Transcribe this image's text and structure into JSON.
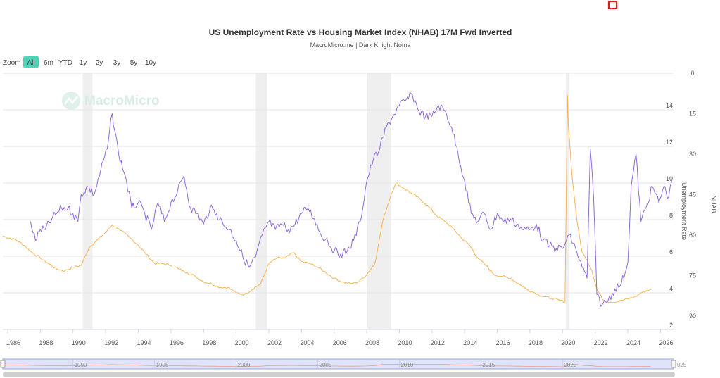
{
  "chart_data": {
    "type": "line",
    "title": "US Unemployment Rate vs Housing Market Index (NHAB) 17M Fwd Inverted",
    "subtitle": "MacroMicro.me | Dark Knight Noma",
    "watermark": "MacroMicro",
    "zoom": {
      "label": "Zoom",
      "buttons": [
        "All",
        "6m",
        "YTD",
        "1y",
        "2y",
        "3y",
        "5y",
        "10y"
      ],
      "active": "All"
    },
    "xlim": [
      1985.7,
      2026.8
    ],
    "x_ticks": [
      "1986",
      "1988",
      "1990",
      "1992",
      "1994",
      "1996",
      "1998",
      "2000",
      "2002",
      "2004",
      "2006",
      "2008",
      "2010",
      "2012",
      "2014",
      "2016",
      "2018",
      "2020",
      "2022",
      "2024",
      "2026"
    ],
    "left_axis": {
      "ylim": [
        2,
        16
      ],
      "ticks": [
        "14",
        "12",
        "10",
        "8",
        "6",
        "4",
        "2"
      ]
    },
    "right_axis": {
      "label": "NHAB",
      "ylim": [
        0,
        95
      ],
      "inverted": true,
      "ticks": [
        "0",
        "15",
        "30",
        "45",
        "60",
        "75",
        "90"
      ]
    },
    "right_axis_label_inner": "Unemployment Rate",
    "recessions": [
      [
        1990.6,
        1991.2
      ],
      [
        2001.2,
        2001.9
      ],
      [
        2008.0,
        2009.5
      ],
      [
        2020.2,
        2020.4
      ]
    ],
    "series": [
      {
        "name": "Unemployment Rate",
        "axis": "left",
        "color": "#f7b355",
        "x": [
          1985.7,
          1986.5,
          1987.0,
          1987.5,
          1988.0,
          1988.5,
          1989.0,
          1989.5,
          1990.0,
          1990.5,
          1991.0,
          1991.5,
          1992.0,
          1992.4,
          1992.8,
          1993.5,
          1994.0,
          1994.5,
          1995.0,
          1995.5,
          1996.0,
          1996.5,
          1997.0,
          1997.5,
          1998.0,
          1998.5,
          1999.0,
          1999.5,
          2000.0,
          2000.5,
          2001.0,
          2001.5,
          2002.0,
          2002.5,
          2003.0,
          2003.5,
          2004.0,
          2004.5,
          2005.0,
          2005.5,
          2006.0,
          2006.5,
          2007.0,
          2007.5,
          2008.0,
          2008.5,
          2009.0,
          2009.5,
          2009.8,
          2010.3,
          2010.8,
          2011.3,
          2011.8,
          2012.3,
          2012.8,
          2013.3,
          2013.8,
          2014.3,
          2014.8,
          2015.3,
          2015.8,
          2016.3,
          2016.8,
          2017.3,
          2017.8,
          2018.3,
          2018.8,
          2019.3,
          2019.8,
          2020.15,
          2020.3,
          2020.35,
          2020.6,
          2020.9,
          2021.2,
          2021.5,
          2021.8,
          2022.1,
          2022.5,
          2022.9,
          2023.3,
          2023.7,
          2024.1,
          2024.5,
          2024.8,
          2025.1,
          2025.4
        ],
        "y": [
          7.1,
          6.9,
          6.6,
          6.2,
          5.9,
          5.6,
          5.3,
          5.2,
          5.4,
          5.5,
          6.5,
          6.9,
          7.3,
          7.7,
          7.5,
          7.0,
          6.6,
          6.1,
          5.6,
          5.6,
          5.5,
          5.3,
          5.1,
          4.9,
          4.6,
          4.5,
          4.3,
          4.3,
          4.0,
          3.9,
          4.2,
          4.5,
          5.6,
          5.9,
          5.9,
          6.2,
          5.7,
          5.6,
          5.4,
          5.1,
          4.8,
          4.6,
          4.5,
          4.6,
          5.0,
          5.6,
          8.0,
          9.4,
          10.0,
          9.7,
          9.4,
          9.1,
          8.7,
          8.2,
          7.9,
          7.5,
          7.0,
          6.6,
          5.9,
          5.5,
          5.0,
          4.9,
          4.8,
          4.5,
          4.2,
          4.0,
          3.8,
          3.7,
          3.6,
          3.5,
          14.8,
          13.2,
          10.2,
          7.8,
          6.2,
          5.8,
          5.2,
          4.2,
          3.6,
          3.5,
          3.5,
          3.6,
          3.7,
          3.8,
          4.0,
          4.1,
          4.2
        ]
      },
      {
        "name": "Housing Market Index (NHAB) 17M Fwd Inverted",
        "axis": "right",
        "color": "#8e6ad8",
        "x": [
          1987.4,
          1987.7,
          1988.0,
          1988.3,
          1988.7,
          1989.0,
          1989.3,
          1989.7,
          1990.0,
          1990.3,
          1990.5,
          1990.9,
          1991.3,
          1991.7,
          1992.1,
          1992.4,
          1992.8,
          1993.2,
          1993.6,
          1994.0,
          1994.4,
          1994.8,
          1995.2,
          1995.6,
          1996.0,
          1996.4,
          1996.8,
          1997.2,
          1997.6,
          1998.0,
          1998.4,
          1998.8,
          1999.2,
          1999.6,
          2000.0,
          2000.4,
          2000.8,
          2001.2,
          2001.6,
          2002.0,
          2002.4,
          2002.8,
          2003.2,
          2003.6,
          2004.0,
          2004.4,
          2004.8,
          2005.2,
          2005.6,
          2006.0,
          2006.4,
          2006.8,
          2007.2,
          2007.6,
          2008.0,
          2008.4,
          2008.8,
          2009.2,
          2009.6,
          2010.0,
          2010.4,
          2010.8,
          2011.2,
          2011.6,
          2012.0,
          2012.4,
          2012.8,
          2013.2,
          2013.6,
          2014.0,
          2014.4,
          2014.8,
          2015.2,
          2015.6,
          2016.0,
          2016.4,
          2016.8,
          2017.2,
          2017.6,
          2018.0,
          2018.4,
          2018.8,
          2019.2,
          2019.6,
          2020.0,
          2020.4,
          2020.8,
          2021.2,
          2021.5,
          2021.7,
          2021.9,
          2022.1,
          2022.4,
          2022.8,
          2023.2,
          2023.6,
          2024.0,
          2024.2,
          2024.5,
          2024.8,
          2025.1,
          2025.5,
          2025.9,
          2026.2,
          2026.5,
          2026.7
        ],
        "y": [
          55,
          62,
          58,
          58,
          54,
          52,
          50,
          50,
          52,
          55,
          45,
          42,
          45,
          36,
          28,
          15,
          30,
          38,
          50,
          48,
          52,
          58,
          48,
          55,
          48,
          44,
          38,
          50,
          52,
          56,
          50,
          52,
          56,
          58,
          62,
          68,
          72,
          68,
          60,
          55,
          58,
          56,
          58,
          56,
          52,
          50,
          54,
          60,
          62,
          66,
          67,
          66,
          62,
          55,
          40,
          32,
          28,
          20,
          16,
          12,
          10,
          8,
          14,
          16,
          16,
          12,
          14,
          20,
          30,
          40,
          52,
          55,
          52,
          58,
          52,
          55,
          54,
          56,
          58,
          58,
          56,
          62,
          64,
          65,
          65,
          60,
          65,
          72,
          76,
          28,
          46,
          82,
          86,
          84,
          80,
          78,
          70,
          42,
          30,
          55,
          50,
          42,
          48,
          42,
          46,
          40
        ]
      }
    ],
    "navigator": {
      "years": [
        "1990",
        "1995",
        "2000",
        "2005",
        "2010",
        "2015",
        "2020"
      ],
      "trailing": "025"
    }
  }
}
